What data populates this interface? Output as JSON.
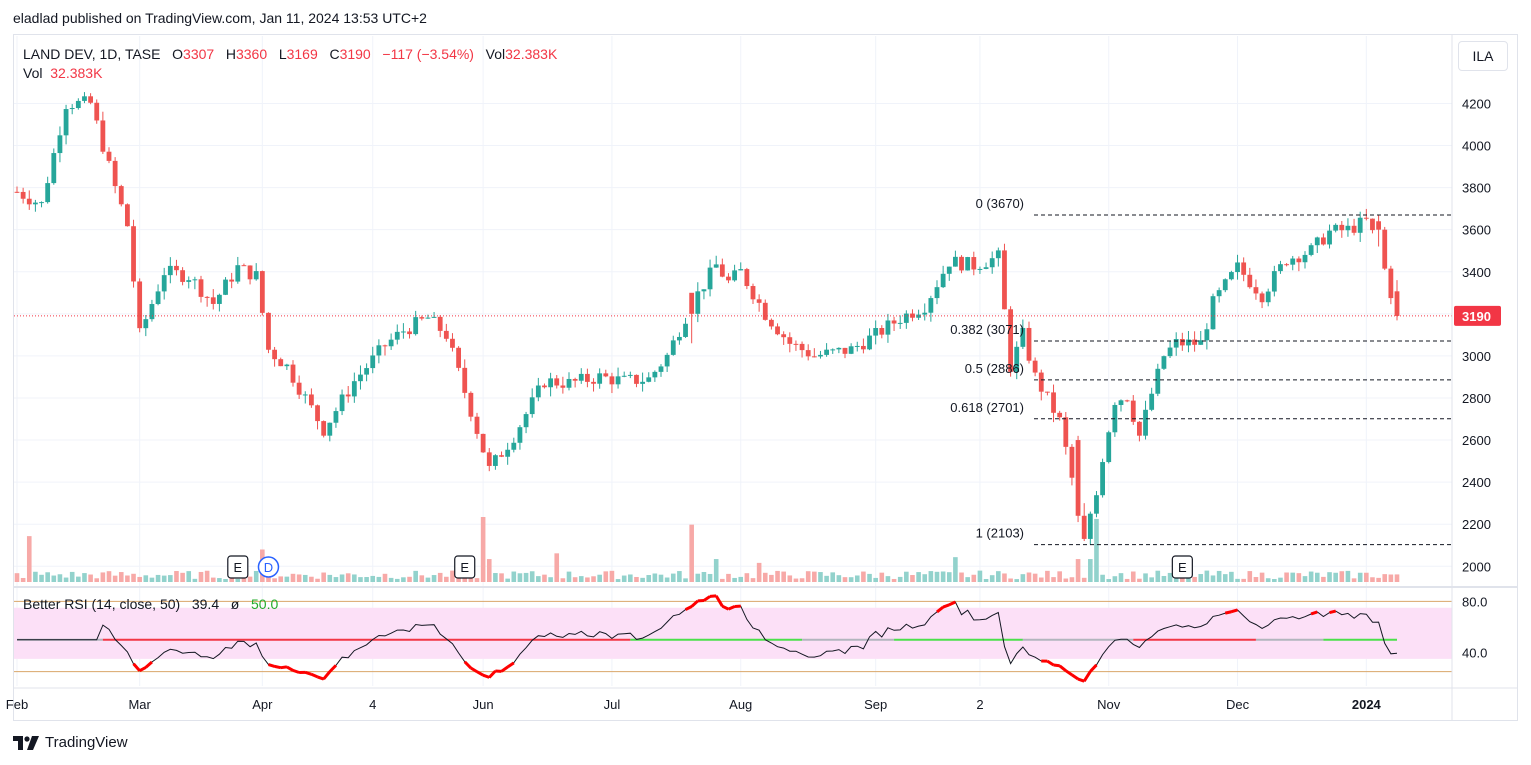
{
  "header": {
    "published_line": "eladlad published on TradingView.com, Jan 11, 2024 13:53 UTC+2"
  },
  "legend": {
    "symbol": "LAND DEV, 1D, TASE",
    "o_key": "O",
    "o_val": "3307",
    "h_key": "H",
    "h_val": "3360",
    "l_key": "L",
    "l_val": "3169",
    "c_key": "C",
    "c_val": "3190",
    "change": "−117 (−3.54%)",
    "vol_key": "Vol",
    "vol_val": "32.383K",
    "vol_line_key": "Vol",
    "vol_line_val": "32.383K"
  },
  "rsi_legend": {
    "label": "Better RSI (14, close, 50)",
    "value": "39.4",
    "sep": "ø",
    "level": "50.0"
  },
  "currency_button": "ILA",
  "footer": {
    "brand": "TradingView"
  },
  "colors": {
    "up": "#26a69a",
    "down": "#ef5350",
    "up_vol": "#92d2cc",
    "down_vol": "#f7a9a7",
    "rsi_band": "#fce0f7",
    "price_marker": "#f23645"
  },
  "chart_data": {
    "type": "candlestick",
    "price_axis": {
      "ylim": [
        1930,
        4340
      ],
      "ticks": [
        2000,
        2200,
        2400,
        2600,
        2800,
        3000,
        3200,
        3400,
        3600,
        3800,
        4000,
        4200
      ]
    },
    "last_price": 3190,
    "last_price_label": "3190",
    "x_ticks": [
      {
        "index": 0,
        "label": "Feb",
        "bold": false
      },
      {
        "index": 20,
        "label": "Mar",
        "bold": false
      },
      {
        "index": 40,
        "label": "Apr",
        "bold": false
      },
      {
        "index": 58,
        "label": "4",
        "bold": false
      },
      {
        "index": 76,
        "label": "Jun",
        "bold": false
      },
      {
        "index": 97,
        "label": "Jul",
        "bold": false
      },
      {
        "index": 118,
        "label": "Aug",
        "bold": false
      },
      {
        "index": 140,
        "label": "Sep",
        "bold": false
      },
      {
        "index": 157,
        "label": "2",
        "bold": false
      },
      {
        "index": 178,
        "label": "Nov",
        "bold": false
      },
      {
        "index": 199,
        "label": "Dec",
        "bold": false
      },
      {
        "index": 220,
        "label": "2024",
        "bold": true
      }
    ],
    "anchors": [
      [
        0,
        3780
      ],
      [
        4,
        3720
      ],
      [
        8,
        4200
      ],
      [
        12,
        4200
      ],
      [
        16,
        3800
      ],
      [
        18,
        3620
      ],
      [
        20,
        3100
      ],
      [
        24,
        3400
      ],
      [
        28,
        3380
      ],
      [
        32,
        3250
      ],
      [
        36,
        3420
      ],
      [
        39,
        3380
      ],
      [
        41,
        3030
      ],
      [
        44,
        2950
      ],
      [
        50,
        2650
      ],
      [
        55,
        2880
      ],
      [
        60,
        3050
      ],
      [
        63,
        3120
      ],
      [
        67,
        3180
      ],
      [
        70,
        3100
      ],
      [
        74,
        2740
      ],
      [
        77,
        2460
      ],
      [
        81,
        2620
      ],
      [
        86,
        2880
      ],
      [
        90,
        2870
      ],
      [
        95,
        2900
      ],
      [
        99,
        2880
      ],
      [
        103,
        2890
      ],
      [
        106,
        3000
      ],
      [
        110,
        3250
      ],
      [
        114,
        3430
      ],
      [
        116,
        3350
      ],
      [
        118,
        3400
      ],
      [
        122,
        3200
      ],
      [
        126,
        3060
      ],
      [
        130,
        3000
      ],
      [
        136,
        3030
      ],
      [
        140,
        3100
      ],
      [
        144,
        3180
      ],
      [
        148,
        3240
      ],
      [
        152,
        3450
      ],
      [
        156,
        3430
      ],
      [
        160,
        3470
      ],
      [
        162,
        2950
      ],
      [
        164,
        3100
      ],
      [
        166,
        2900
      ],
      [
        170,
        2690
      ],
      [
        173,
        2280
      ],
      [
        175,
        2160
      ],
      [
        177,
        2520
      ],
      [
        179,
        2790
      ],
      [
        181,
        2810
      ],
      [
        183,
        2620
      ],
      [
        185,
        2820
      ],
      [
        187,
        3000
      ],
      [
        189,
        3060
      ],
      [
        193,
        3060
      ],
      [
        195,
        3250
      ],
      [
        199,
        3420
      ],
      [
        203,
        3290
      ],
      [
        207,
        3460
      ],
      [
        211,
        3500
      ],
      [
        214,
        3590
      ],
      [
        217,
        3600
      ],
      [
        220,
        3640
      ],
      [
        222,
        3520
      ],
      [
        224,
        3300
      ],
      [
        225,
        3190
      ]
    ],
    "anomalies": {
      "173": [
        2600,
        2620,
        2210,
        2240
      ],
      "174": [
        2240,
        2300,
        2120,
        2130
      ],
      "175": [
        2130,
        2260,
        2103,
        2250
      ],
      "110": [
        3300,
        3280,
        3060,
        3200
      ],
      "222": [
        3640,
        3670,
        3520,
        3600
      ]
    },
    "volume_spikes": {
      "2": 2.4,
      "40": 1.7,
      "76": 3.4,
      "77": 1.2,
      "88": 1.5,
      "110": 3.0,
      "114": 1.2,
      "121": 1.0,
      "153": 1.3,
      "173": 1.2,
      "175": 1.2,
      "176": 3.3
    },
    "volume_max": 3.4,
    "fib_levels": [
      {
        "ratio": 0,
        "price": 3670,
        "label": "0 (3670)"
      },
      {
        "ratio": 0.382,
        "price": 3071,
        "label": "0.382 (3071)"
      },
      {
        "ratio": 0.5,
        "price": 2886,
        "label": "0.5 (2886)"
      },
      {
        "ratio": 0.618,
        "price": 2701,
        "label": "0.618 (2701)"
      },
      {
        "ratio": 1,
        "price": 2103,
        "label": "1 (2103)"
      }
    ],
    "fib_start_index": 165,
    "markers": [
      {
        "index": 36,
        "label": "E",
        "type": "earnings"
      },
      {
        "index": 41,
        "label": "D",
        "type": "dividend"
      },
      {
        "index": 73,
        "label": "E",
        "type": "earnings"
      },
      {
        "index": 190,
        "label": "E",
        "type": "earnings"
      }
    ],
    "rsi": {
      "axis_ticks": [
        40.0,
        80.0
      ],
      "axis_tick_labels": [
        "40.0",
        "80.0"
      ],
      "ylim": [
        20,
        85
      ],
      "band": [
        35,
        75
      ],
      "level": 50,
      "outer_lines": [
        25,
        80
      ],
      "midline_segments": [
        {
          "from": 0,
          "to": 14,
          "color": "#b2b5be"
        },
        {
          "from": 14,
          "to": 100,
          "color": "#f23645"
        },
        {
          "from": 100,
          "to": 128,
          "color": "#4be04b"
        },
        {
          "from": 128,
          "to": 143,
          "color": "#b2b5be"
        },
        {
          "from": 143,
          "to": 164,
          "color": "#4be04b"
        },
        {
          "from": 164,
          "to": 182,
          "color": "#b2b5be"
        },
        {
          "from": 182,
          "to": 202,
          "color": "#f23645"
        },
        {
          "from": 202,
          "to": 213,
          "color": "#b2b5be"
        },
        {
          "from": 213,
          "to": 225,
          "color": "#4be04b"
        }
      ]
    }
  }
}
